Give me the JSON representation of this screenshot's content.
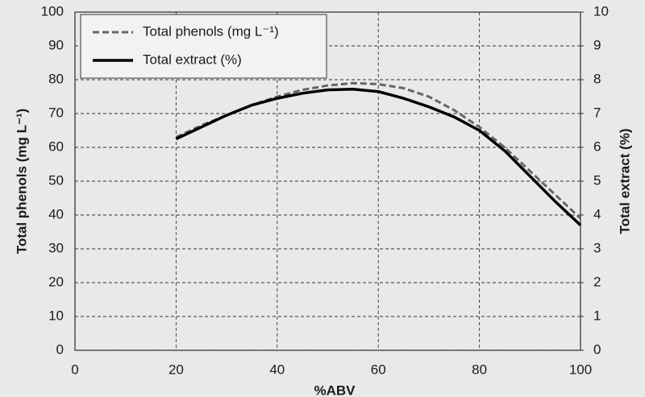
{
  "chart_data": {
    "type": "line",
    "x_label": "%ABV",
    "y_label": "Total phenols (mg L⁻¹)",
    "y2_label": "Total extract (%)",
    "x": [
      20,
      25,
      30,
      35,
      40,
      45,
      50,
      55,
      60,
      65,
      70,
      75,
      80,
      85,
      90,
      95,
      100
    ],
    "series": [
      {
        "name": "Total phenols (mg L⁻¹)",
        "color": "#666666",
        "dash": true,
        "values": [
          63,
          66.5,
          69.5,
          72.5,
          75,
          77,
          78.3,
          79,
          78.7,
          77.5,
          75,
          71,
          66,
          60,
          53,
          46,
          39
        ]
      },
      {
        "name": "Total extract (%)",
        "color": "#000000",
        "dash": false,
        "axis": "y2",
        "values": [
          6.25,
          6.6,
          6.95,
          7.25,
          7.45,
          7.6,
          7.7,
          7.72,
          7.65,
          7.45,
          7.2,
          6.9,
          6.5,
          5.9,
          5.15,
          4.4,
          3.7
        ]
      }
    ],
    "xlim": [
      0,
      100
    ],
    "xticks": [
      0,
      20,
      40,
      60,
      80,
      100
    ],
    "ylim": [
      0,
      100
    ],
    "yticks": [
      0,
      10,
      20,
      30,
      40,
      50,
      60,
      70,
      80,
      90,
      100
    ],
    "y2lim": [
      0,
      10
    ],
    "y2ticks": [
      0,
      1,
      2,
      3,
      4,
      5,
      6,
      7,
      8,
      9,
      10
    ],
    "grid": true,
    "legend": "upper left"
  }
}
